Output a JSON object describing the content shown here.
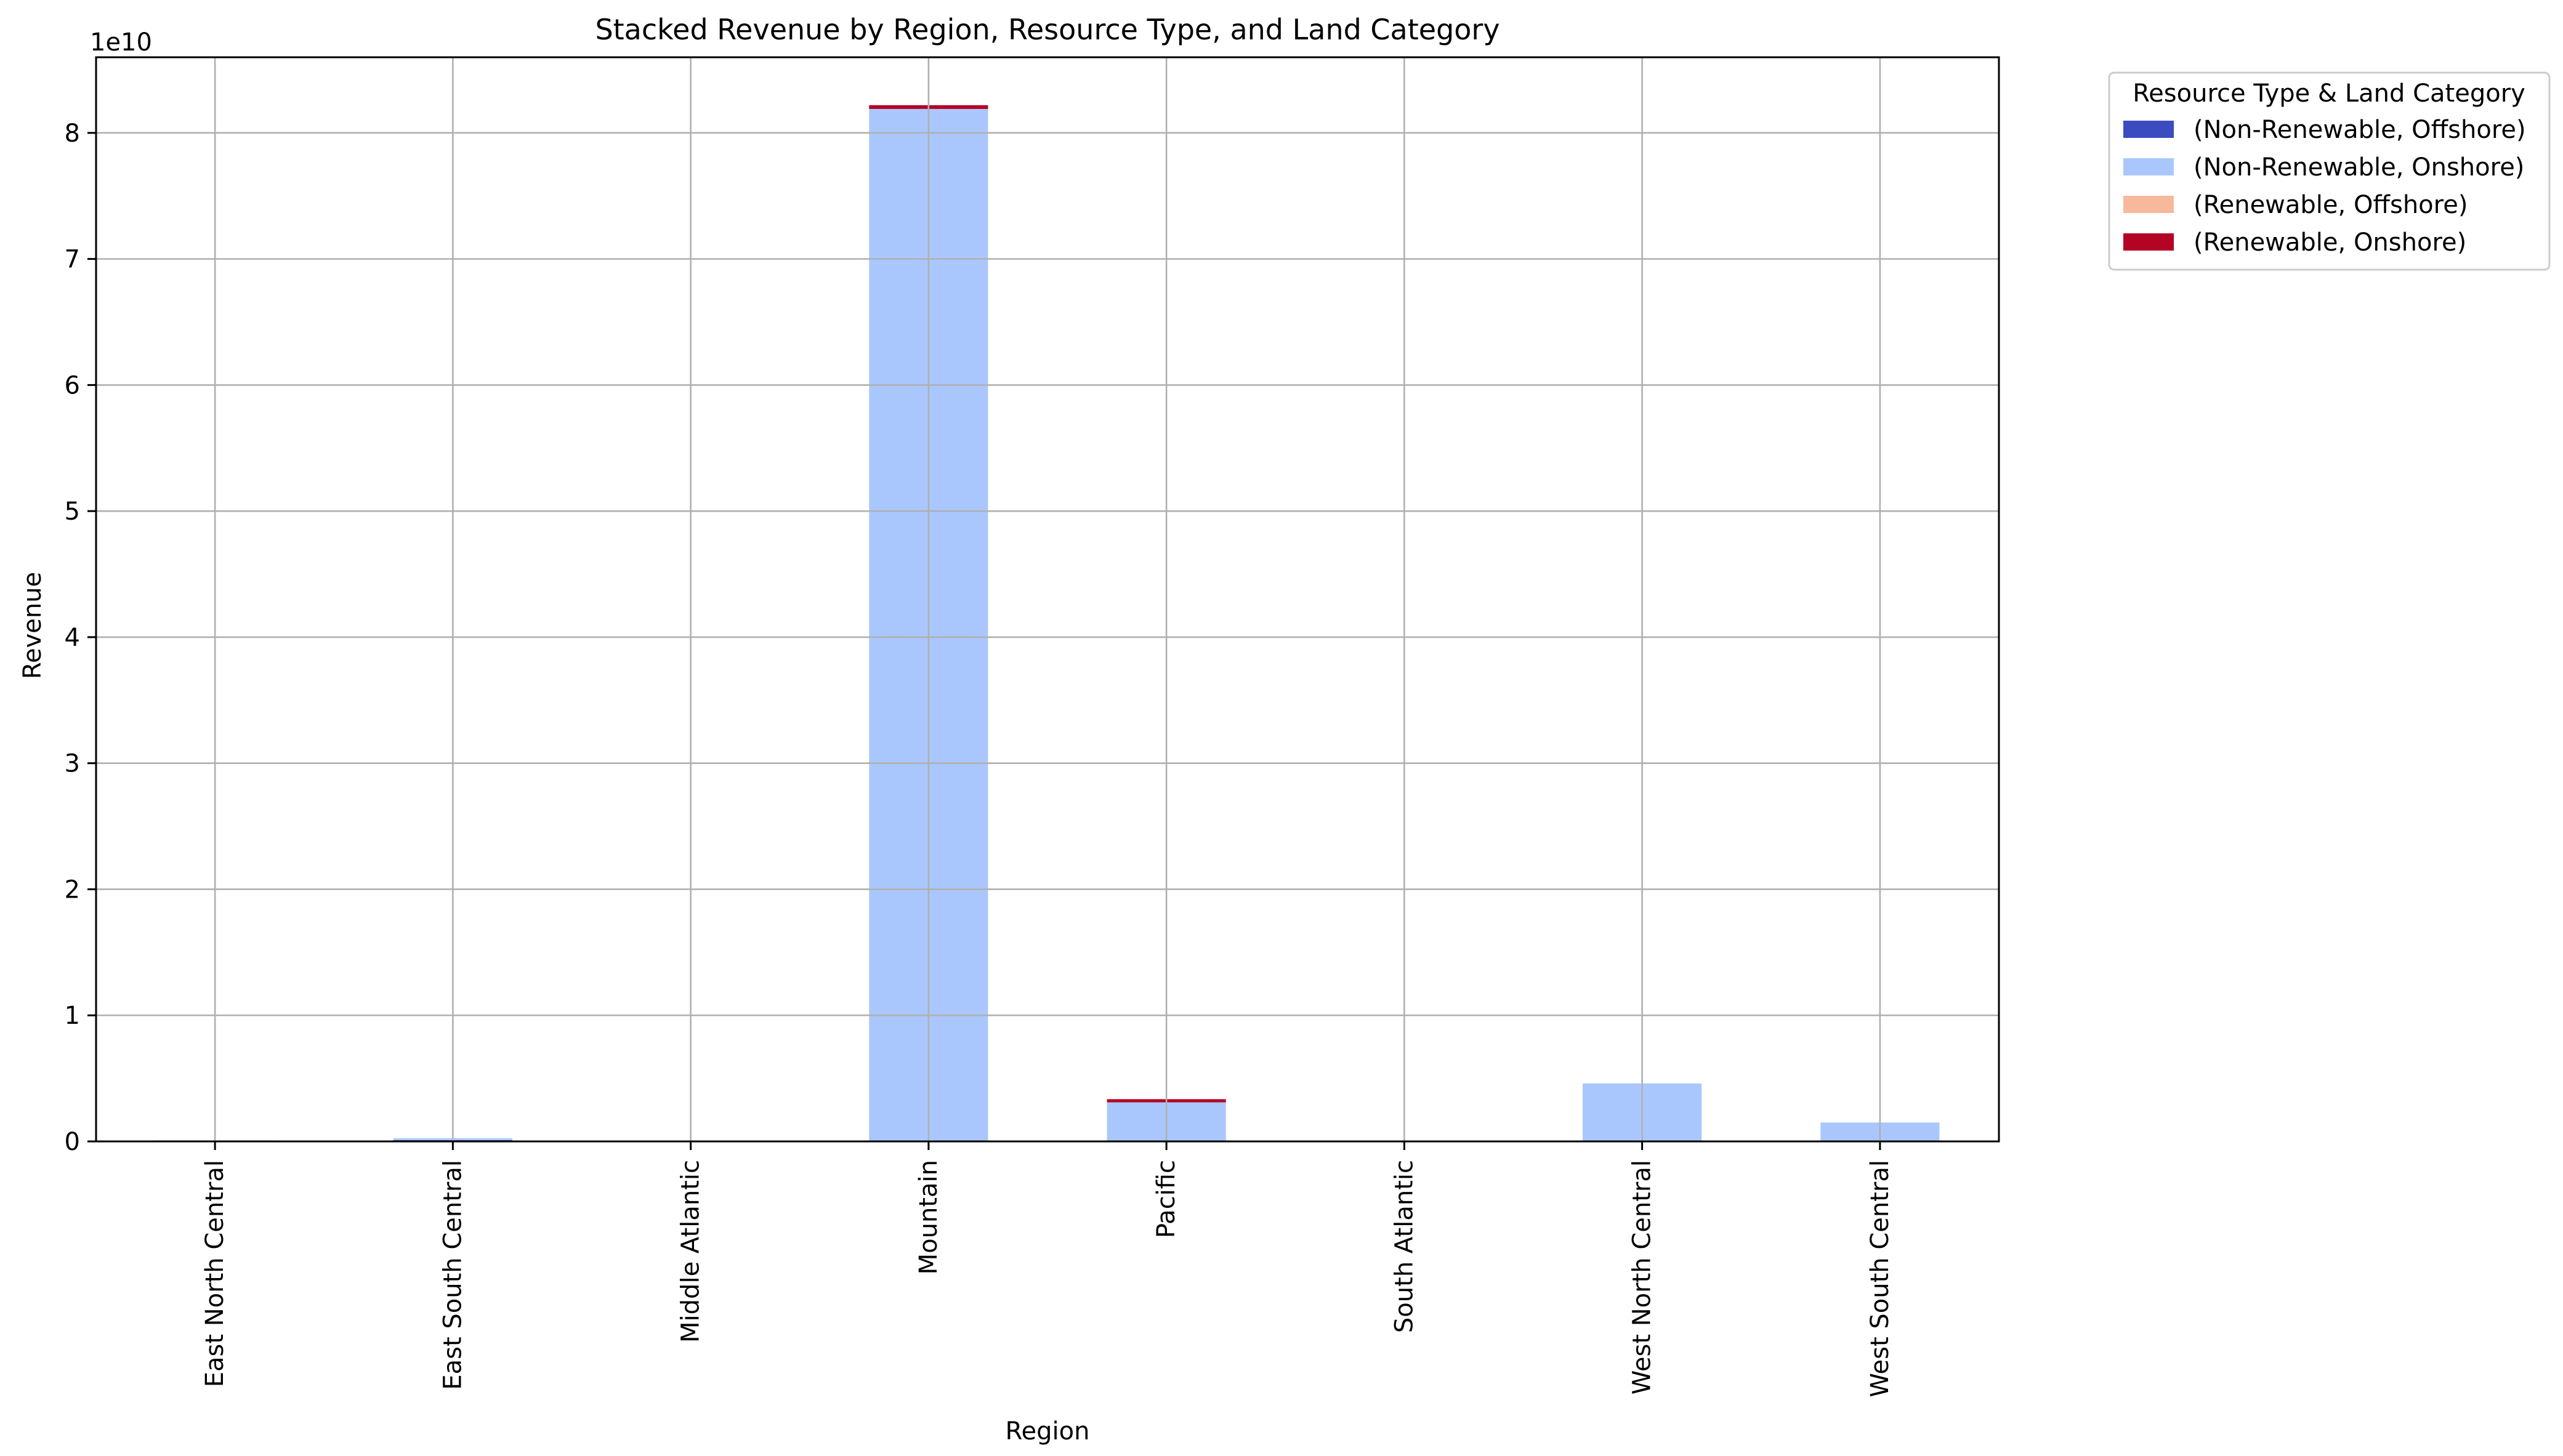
{
  "chart_data": {
    "type": "bar",
    "stacked": true,
    "title": "Stacked Revenue by Region, Resource Type, and Land Category",
    "xlabel": "Region",
    "ylabel": "Revenue",
    "y_offset_text": "1e10",
    "y_scale_factor": 10000000000,
    "ylim": [
      0,
      86000000000
    ],
    "y_ticks": [
      0,
      10000000000,
      20000000000,
      30000000000,
      40000000000,
      50000000000,
      60000000000,
      70000000000,
      80000000000
    ],
    "y_tick_labels": [
      "0",
      "1",
      "2",
      "3",
      "4",
      "5",
      "6",
      "7",
      "8"
    ],
    "grid": true,
    "legend_position": "outside-top-right",
    "legend_title": "Resource Type & Land Category",
    "categories": [
      "East North Central",
      "East South Central",
      "Middle Atlantic",
      "Mountain",
      "Pacific",
      "South Atlantic",
      "West North Central",
      "West South Central"
    ],
    "series": [
      {
        "name": "(Non-Renewable, Offshore)",
        "color": "#3b4cc0",
        "values": [
          0,
          100000000,
          0,
          0,
          0,
          0,
          0,
          0
        ]
      },
      {
        "name": "(Non-Renewable, Onshore)",
        "color": "#aac7fd",
        "values": [
          80000000,
          150000000,
          20000000,
          81900000000,
          3100000000,
          30000000,
          4600000000,
          1500000000
        ]
      },
      {
        "name": "(Renewable, Offshore)",
        "color": "#f7b89c",
        "values": [
          0,
          0,
          0,
          0,
          0,
          0,
          0,
          0
        ]
      },
      {
        "name": "(Renewable, Onshore)",
        "color": "#b40426",
        "values": [
          0,
          0,
          0,
          300000000,
          250000000,
          0,
          0,
          0
        ]
      }
    ]
  }
}
